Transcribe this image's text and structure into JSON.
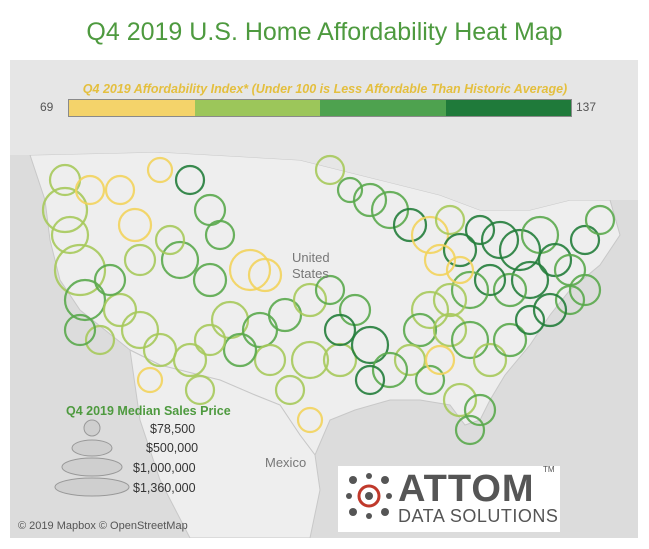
{
  "title": "Q4 2019 U.S. Home Affordability Heat Map",
  "color_legend": {
    "title": "Q4 2019 Affordability Index* (Under 100 is Less Affordable Than Historic Average)",
    "min": "69",
    "max": "137",
    "colors": [
      "#f4d36a",
      "#9cc65a",
      "#4ea24f",
      "#1f7a3a"
    ]
  },
  "size_legend": {
    "title": "Q4 2019 Median Sales Price",
    "items": [
      "$78,500",
      "$500,000",
      "$1,000,000",
      "$1,360,000"
    ]
  },
  "place_labels": {
    "country": "United States",
    "country_line1": "United",
    "country_line2": "States",
    "mexico": "Mexico"
  },
  "attribution": "© 2019 Mapbox © OpenStreetMap",
  "logo": {
    "name": "ATTOM",
    "tagline": "DATA SOLUTIONS",
    "trademark": "TM"
  },
  "circle_colors": {
    "yellow": "#f2d35c",
    "light_green": "#a6c95b",
    "green": "#5aa84d",
    "dark_green": "#237d3b"
  }
}
